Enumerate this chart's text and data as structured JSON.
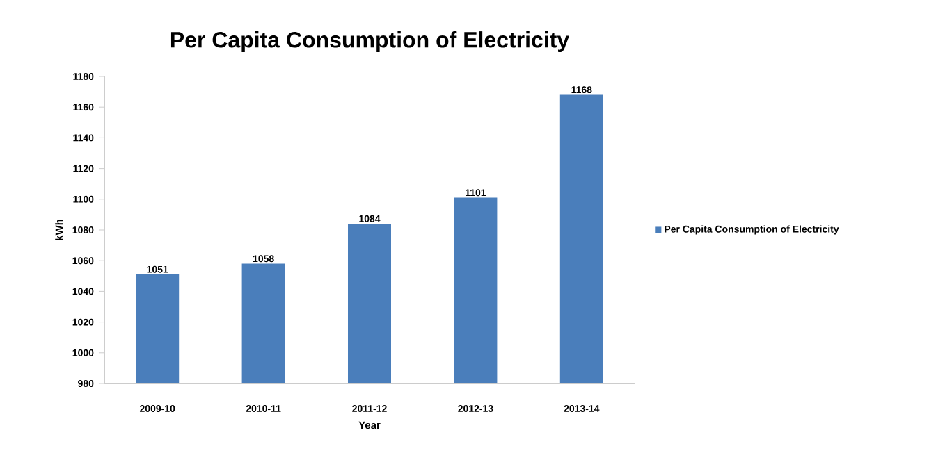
{
  "chart_data": {
    "type": "bar",
    "title": "Per Capita Consumption of Electricity",
    "xlabel": "Year",
    "ylabel": "kWh",
    "categories": [
      "2009-10",
      "2010-11",
      "2011-12",
      "2012-13",
      "2013-14"
    ],
    "series": [
      {
        "name": "Per Capita Consumption of Electricity",
        "color": "#4a7ebb",
        "values": [
          1051,
          1058,
          1084,
          1101,
          1168
        ]
      }
    ],
    "ylim": [
      980,
      1180
    ],
    "yticks": [
      980,
      1000,
      1020,
      1040,
      1060,
      1080,
      1100,
      1120,
      1140,
      1160,
      1180
    ],
    "data_labels": true,
    "legend": "right",
    "grid": false
  }
}
